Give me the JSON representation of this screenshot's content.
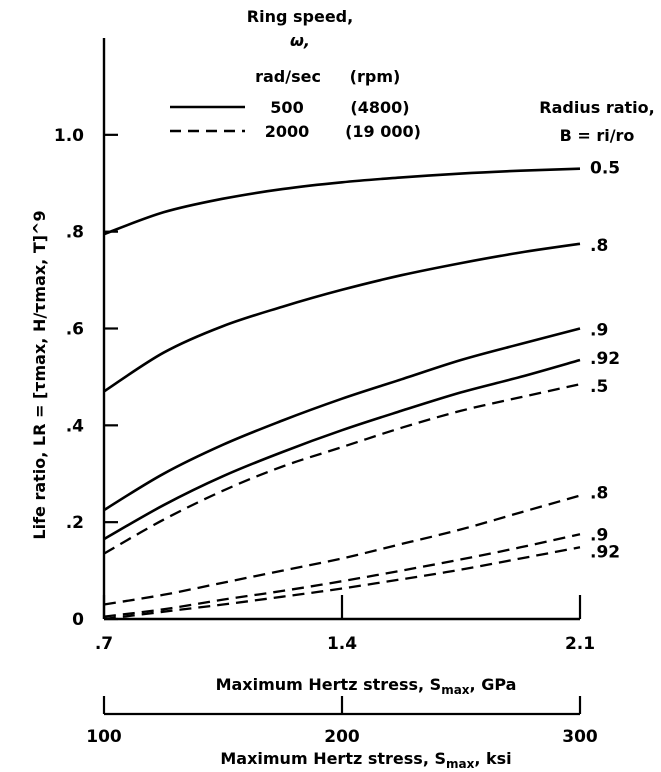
{
  "chart_data": {
    "type": "line",
    "x_axis": {
      "label": "Maximum Hertz stress, S",
      "label_sub": "max",
      "label_unit": ", GPa",
      "range": [
        0.7,
        2.1
      ],
      "ticks": [
        {
          "value": 0.7,
          "label": ".7"
        },
        {
          "value": 1.4,
          "label": "1.4"
        },
        {
          "value": 2.1,
          "label": "2.1"
        }
      ]
    },
    "x_axis_secondary": {
      "label": "Maximum Hertz stress, S",
      "label_sub": "max",
      "label_unit": ", ksi",
      "range": [
        100,
        300
      ],
      "ticks": [
        {
          "value": 100,
          "label": "100"
        },
        {
          "value": 200,
          "label": "200"
        },
        {
          "value": 300,
          "label": "300"
        }
      ]
    },
    "y_axis": {
      "label": "Life ratio, LR = [τmax, H/τmax, T]^9",
      "range": [
        0,
        1.2
      ],
      "ticks": [
        {
          "value": 0,
          "label": "0"
        },
        {
          "value": 0.2,
          "label": ".2"
        },
        {
          "value": 0.4,
          "label": ".4"
        },
        {
          "value": 0.6,
          "label": ".6"
        },
        {
          "value": 0.8,
          "label": ".8"
        },
        {
          "value": 1.0,
          "label": "1.0"
        }
      ]
    },
    "legend": {
      "title_line1": "Ring speed,",
      "title_line2": "ω,",
      "col1_header": "rad/sec",
      "col2_header": "(rpm)",
      "entries": [
        {
          "style": "solid",
          "rad_sec": "500",
          "rpm": "(4800)"
        },
        {
          "style": "dashed",
          "rad_sec": "2000",
          "rpm": "(19 000)"
        }
      ]
    },
    "radius_ratio_title_line1": "Radius ratio,",
    "radius_ratio_title_line2": "B = ri/ro",
    "series": [
      {
        "speed": "500",
        "style": "solid",
        "label": "0.5",
        "x": [
          0.7,
          0.875,
          1.05,
          1.225,
          1.4,
          1.575,
          1.75,
          1.925,
          2.1
        ],
        "y": [
          0.795,
          0.84,
          0.868,
          0.888,
          0.902,
          0.912,
          0.92,
          0.926,
          0.93
        ]
      },
      {
        "speed": "500",
        "style": "solid",
        "label": ".8",
        "x": [
          0.7,
          0.875,
          1.05,
          1.225,
          1.4,
          1.575,
          1.75,
          1.925,
          2.1
        ],
        "y": [
          0.47,
          0.55,
          0.605,
          0.645,
          0.68,
          0.71,
          0.735,
          0.757,
          0.775
        ]
      },
      {
        "speed": "500",
        "style": "solid",
        "label": ".9",
        "x": [
          0.7,
          0.875,
          1.05,
          1.225,
          1.4,
          1.575,
          1.75,
          1.925,
          2.1
        ],
        "y": [
          0.225,
          0.3,
          0.36,
          0.41,
          0.455,
          0.495,
          0.535,
          0.568,
          0.6
        ]
      },
      {
        "speed": "500",
        "style": "solid",
        "label": ".92",
        "x": [
          0.7,
          0.875,
          1.05,
          1.225,
          1.4,
          1.575,
          1.75,
          1.925,
          2.1
        ],
        "y": [
          0.165,
          0.235,
          0.295,
          0.345,
          0.39,
          0.43,
          0.468,
          0.5,
          0.535
        ]
      },
      {
        "speed": "2000",
        "style": "dashed",
        "label": ".5",
        "x": [
          0.7,
          0.875,
          1.05,
          1.225,
          1.4,
          1.575,
          1.75,
          1.925,
          2.1
        ],
        "y": [
          0.135,
          0.205,
          0.265,
          0.315,
          0.355,
          0.395,
          0.43,
          0.458,
          0.485
        ]
      },
      {
        "speed": "2000",
        "style": "dashed",
        "label": ".8",
        "x": [
          0.7,
          0.875,
          1.05,
          1.225,
          1.4,
          1.575,
          1.75,
          1.925,
          2.1
        ],
        "y": [
          0.03,
          0.05,
          0.075,
          0.1,
          0.125,
          0.155,
          0.185,
          0.22,
          0.255
        ]
      },
      {
        "speed": "2000",
        "style": "dashed",
        "label": ".9",
        "x": [
          0.7,
          0.875,
          1.05,
          1.225,
          1.4,
          1.575,
          1.75,
          1.925,
          2.1
        ],
        "y": [
          0.005,
          0.02,
          0.04,
          0.058,
          0.078,
          0.1,
          0.123,
          0.148,
          0.175
        ]
      },
      {
        "speed": "2000",
        "style": "dashed",
        "label": ".92",
        "x": [
          0.7,
          0.875,
          1.05,
          1.225,
          1.4,
          1.575,
          1.75,
          1.925,
          2.1
        ],
        "y": [
          0.0,
          0.015,
          0.03,
          0.046,
          0.063,
          0.082,
          0.102,
          0.125,
          0.148
        ]
      }
    ]
  }
}
